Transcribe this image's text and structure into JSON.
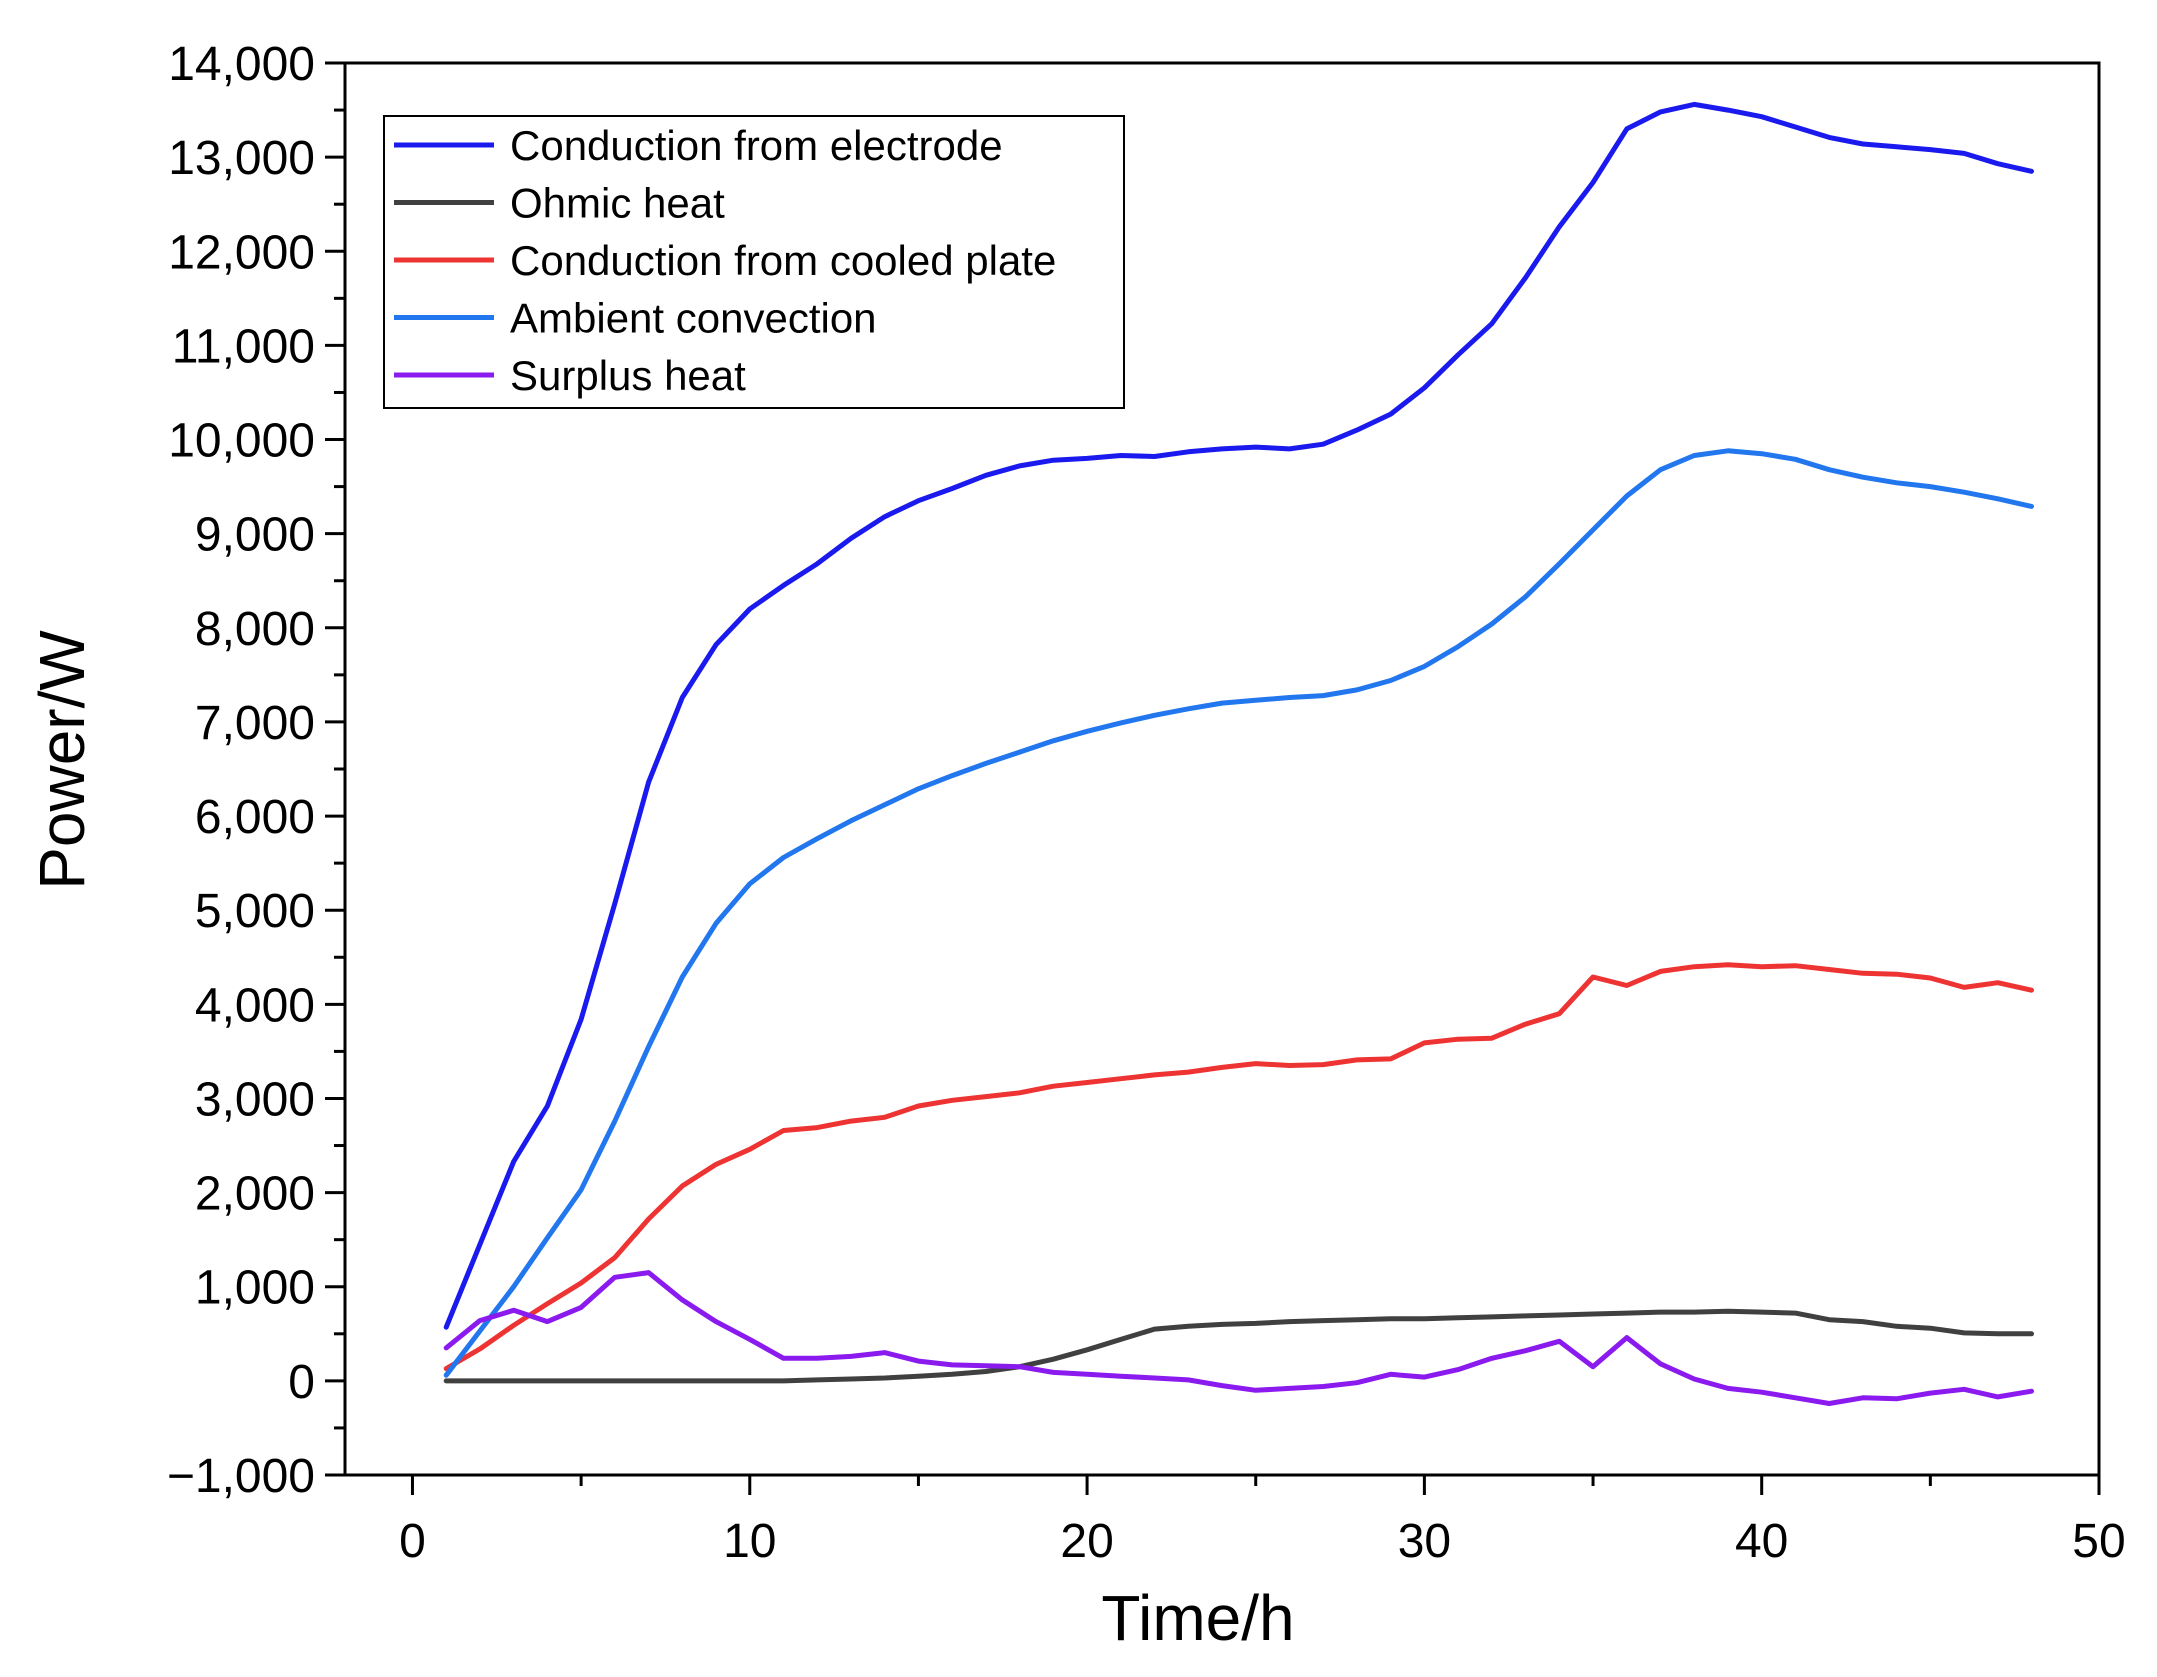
{
  "chart_data": {
    "type": "line",
    "title": "",
    "xlabel": "Time/h",
    "ylabel": "Power/W",
    "xlim": [
      -2,
      50
    ],
    "ylim": [
      -1000,
      14000
    ],
    "x_ticks": [
      0,
      10,
      20,
      30,
      40,
      50
    ],
    "x_tick_labels": [
      "0",
      "10",
      "20",
      "30",
      "40",
      "50"
    ],
    "y_ticks": [
      -1000,
      0,
      1000,
      2000,
      3000,
      4000,
      5000,
      6000,
      7000,
      8000,
      9000,
      10000,
      11000,
      12000,
      13000,
      14000
    ],
    "y_tick_labels": [
      "−1,000",
      "0",
      "1,000",
      "2,000",
      "3,000",
      "4,000",
      "5,000",
      "6,000",
      "7,000",
      "8,000",
      "9,000",
      "10,000",
      "11,000",
      "12,000",
      "13,000",
      "14,000"
    ],
    "grid": false,
    "legend_position": "top-left",
    "x": [
      1,
      2,
      3,
      4,
      5,
      6,
      7,
      8,
      9,
      10,
      11,
      12,
      13,
      14,
      15,
      16,
      17,
      18,
      19,
      20,
      21,
      22,
      23,
      24,
      25,
      26,
      27,
      28,
      29,
      30,
      31,
      32,
      33,
      34,
      35,
      36,
      37,
      38,
      39,
      40,
      41,
      42,
      43,
      44,
      45,
      46,
      47,
      48
    ],
    "series": [
      {
        "name": "Conduction from electrode",
        "color": "#1a1aee",
        "values": [
          570,
          1450,
          2330,
          2920,
          3840,
          5070,
          6360,
          7260,
          7820,
          8200,
          8450,
          8680,
          8950,
          9180,
          9350,
          9480,
          9620,
          9720,
          9780,
          9800,
          9830,
          9820,
          9870,
          9900,
          9920,
          9900,
          9950,
          10100,
          10270,
          10550,
          10900,
          11230,
          11720,
          12260,
          12730,
          13300,
          13480,
          13560,
          13500,
          13430,
          13320,
          13210,
          13140,
          13110,
          13080,
          13040,
          12930,
          12850
        ]
      },
      {
        "name": "Ohmic heat",
        "color": "#404040",
        "values": [
          0,
          0,
          0,
          0,
          0,
          0,
          0,
          0,
          0,
          0,
          0,
          10,
          20,
          30,
          50,
          70,
          100,
          150,
          230,
          330,
          440,
          550,
          580,
          600,
          610,
          630,
          640,
          650,
          660,
          660,
          670,
          680,
          690,
          700,
          710,
          720,
          730,
          730,
          740,
          730,
          720,
          650,
          630,
          580,
          560,
          510,
          500,
          500
        ]
      },
      {
        "name": "Conduction from cooled plate",
        "color": "#ee3333",
        "values": [
          130,
          340,
          590,
          820,
          1040,
          1310,
          1720,
          2070,
          2300,
          2460,
          2660,
          2690,
          2760,
          2800,
          2920,
          2980,
          3020,
          3060,
          3130,
          3170,
          3210,
          3250,
          3280,
          3330,
          3370,
          3350,
          3360,
          3410,
          3420,
          3590,
          3630,
          3640,
          3790,
          3900,
          4290,
          4200,
          4350,
          4400,
          4420,
          4400,
          4410,
          4370,
          4330,
          4320,
          4280,
          4180,
          4230,
          4150
        ]
      },
      {
        "name": "Ambient convection",
        "color": "#2277ee",
        "values": [
          60,
          530,
          1000,
          1520,
          2030,
          2760,
          3550,
          4290,
          4860,
          5280,
          5560,
          5760,
          5950,
          6120,
          6290,
          6430,
          6560,
          6680,
          6800,
          6900,
          6990,
          7070,
          7140,
          7200,
          7230,
          7260,
          7280,
          7340,
          7440,
          7590,
          7800,
          8040,
          8330,
          8680,
          9040,
          9400,
          9680,
          9830,
          9880,
          9850,
          9790,
          9680,
          9600,
          9540,
          9500,
          9440,
          9370,
          9290
        ]
      },
      {
        "name": "Surplus heat",
        "color": "#8a1aee",
        "values": [
          350,
          640,
          750,
          630,
          780,
          1100,
          1150,
          860,
          630,
          440,
          240,
          240,
          260,
          300,
          210,
          170,
          160,
          150,
          90,
          70,
          50,
          30,
          10,
          -50,
          -100,
          -80,
          -60,
          -20,
          70,
          40,
          120,
          240,
          320,
          420,
          150,
          460,
          180,
          20,
          -80,
          -120,
          -180,
          -240,
          -180,
          -190,
          -130,
          -90,
          -170,
          -110
        ]
      }
    ]
  }
}
